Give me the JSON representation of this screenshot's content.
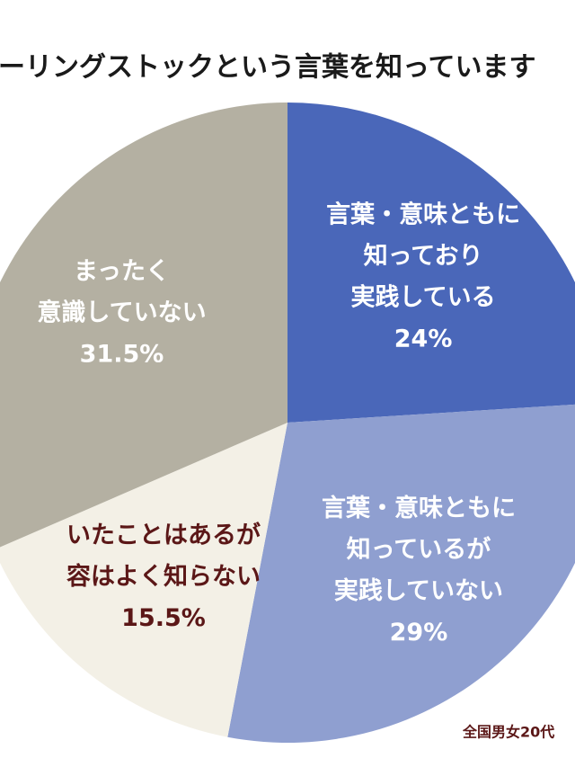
{
  "chart_data": {
    "type": "pie",
    "title": "ーリングストックという言葉を知っています",
    "categories": [
      [
        "言葉・意味ともに",
        "知っており",
        "実践している"
      ],
      [
        "言葉・意味ともに",
        "知っているが",
        "実践していない"
      ],
      [
        "いたことはあるが",
        "容はよく知らない"
      ],
      [
        "まったく",
        "意識していない"
      ]
    ],
    "values": [
      24,
      29,
      15.5,
      31.5
    ],
    "value_labels": [
      "24%",
      "29%",
      "15.5%",
      "31.5%"
    ],
    "colors": [
      "#4a67b9",
      "#8f9fd0",
      "#f3f0e6",
      "#b4b0a2"
    ],
    "label_colors": [
      "#ffffff",
      "#ffffff",
      "#5b1717",
      "#ffffff"
    ],
    "note": "全国男女20代"
  }
}
